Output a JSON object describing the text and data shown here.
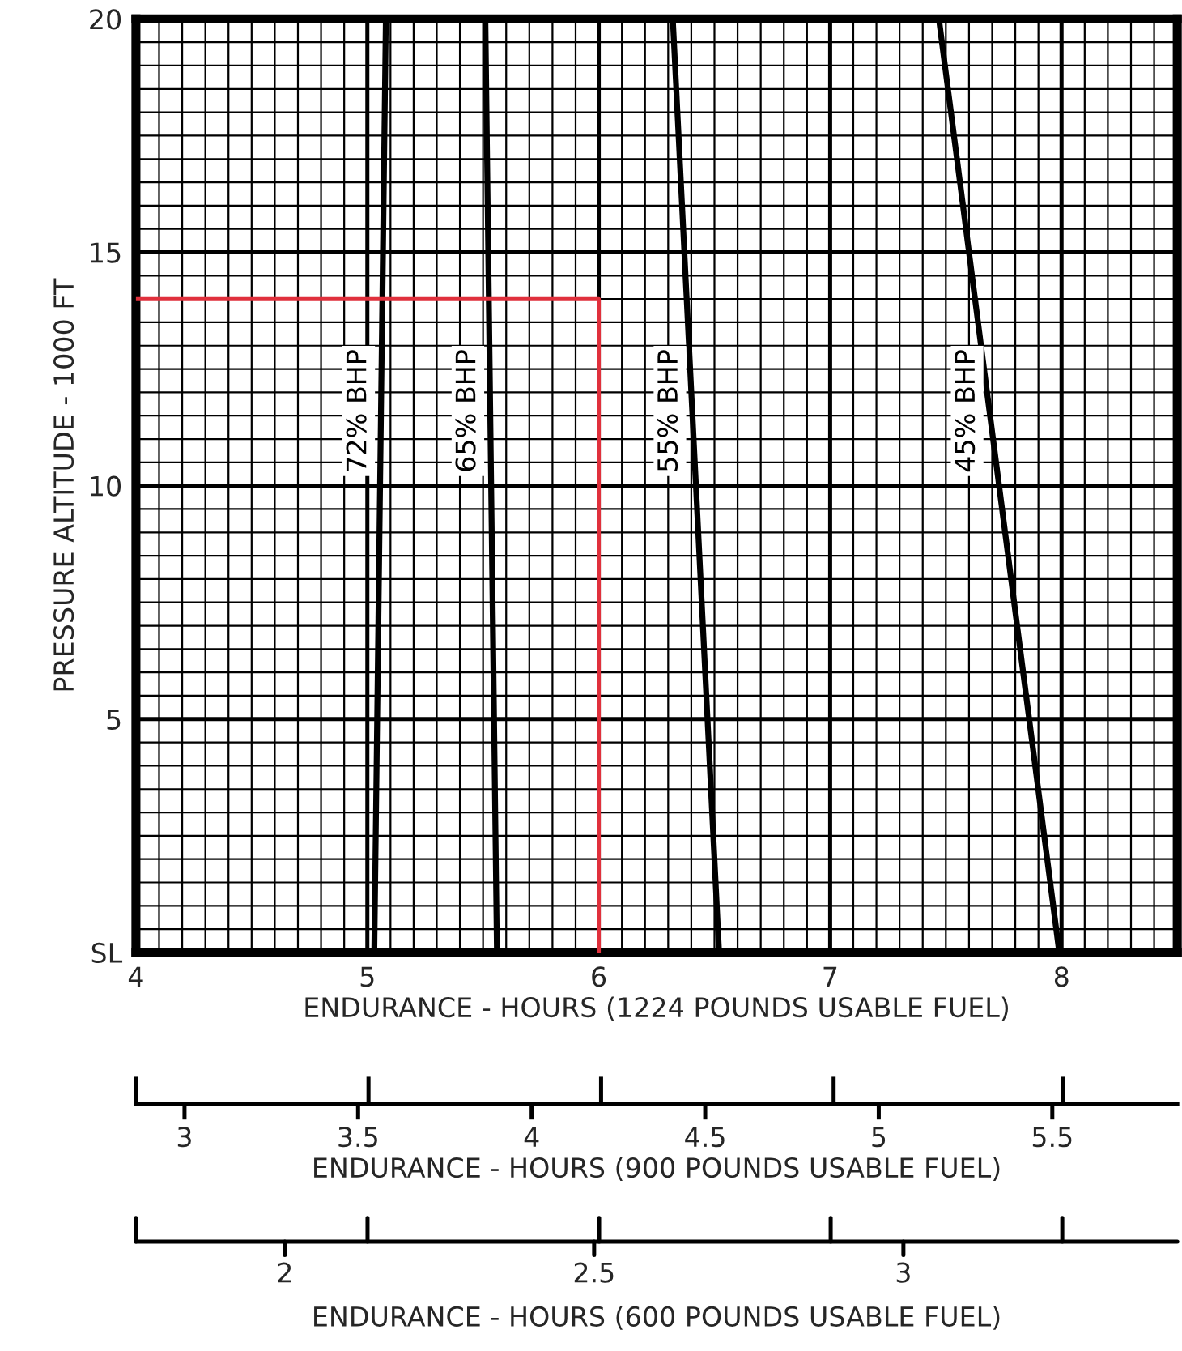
{
  "chart_data": [
    {
      "type": "line",
      "ylabel": "PRESSURE ALTITUDE - 1000 FT",
      "xlabel": "ENDURANCE - HOURS (1224 POUNDS USABLE FUEL)",
      "x2label": "ENDURANCE - HOURS (900 POUNDS USABLE FUEL)",
      "xlim": [
        4,
        8.5
      ],
      "xticks": [
        4,
        5,
        6,
        7,
        8
      ],
      "ylim": [
        0,
        20
      ],
      "yticks": [
        {
          "value": 0,
          "label": "SL"
        },
        5,
        10,
        15,
        20
      ],
      "x2lim": [
        2.86,
        5.86
      ],
      "x2ticks": [
        {
          "value": 2.86,
          "label": null
        },
        3,
        3.5,
        {
          "value": 3.53,
          "label": null
        },
        4,
        {
          "value": 4.2,
          "label": null
        },
        4.5,
        {
          "value": 4.87,
          "label": null
        },
        5,
        5.5,
        {
          "value": 5.53,
          "label": null
        }
      ],
      "grid": true,
      "marker": "none",
      "line_style": "solid",
      "series": [
        {
          "name": "72% BHP",
          "color": "#000000",
          "x": [
            5.03,
            5.08
          ],
          "values": [
            0,
            20
          ]
        },
        {
          "name": "65% BHP",
          "color": "#000000",
          "x": [
            5.56,
            5.51
          ],
          "values": [
            0,
            20
          ]
        },
        {
          "name": "55% BHP",
          "color": "#000000",
          "x": [
            6.52,
            6.32
          ],
          "values": [
            0,
            20
          ]
        },
        {
          "name": "45% BHP",
          "color": "#000000",
          "x": [
            7.99,
            7.47
          ],
          "values": [
            0,
            20
          ]
        },
        {
          "color": "#e0303c",
          "x": [
            4,
            6,
            6
          ],
          "values": [
            14,
            14,
            0
          ]
        }
      ]
    },
    {
      "type": "other",
      "xlabel": "ENDURANCE - HOURS (600 POUNDS USABLE FUEL)",
      "annotations": [
        "2",
        "2.5",
        "3"
      ]
    }
  ]
}
